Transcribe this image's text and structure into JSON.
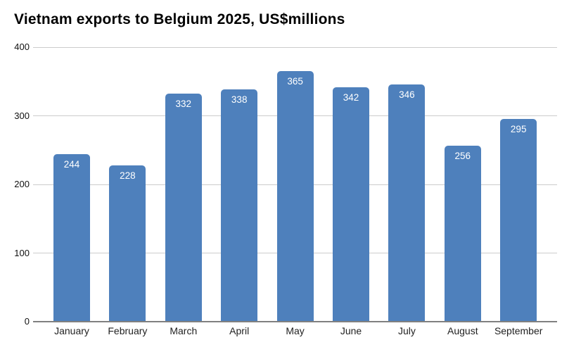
{
  "title": "Vietnam exports to Belgium 2025, US$millions",
  "chart_data": {
    "type": "bar",
    "title": "Vietnam exports to Belgium 2025, US$millions",
    "categories": [
      "January",
      "February",
      "March",
      "April",
      "May",
      "June",
      "July",
      "August",
      "September"
    ],
    "values": [
      244,
      228,
      332,
      338,
      365,
      342,
      346,
      256,
      295
    ],
    "xlabel": "",
    "ylabel": "",
    "ylim": [
      0,
      400
    ],
    "yticks": [
      0,
      100,
      200,
      300,
      400
    ],
    "grid": true,
    "legend": "none",
    "bar_labels_visible": true,
    "colors": {
      "bar_fill": "#4e80bc",
      "bar_label_text": "#ffffff",
      "gridline": "#cccccc",
      "axis_line": "#808080",
      "axis_text": "#1f1f1f",
      "title_text": "#000000",
      "background": "#ffffff"
    }
  }
}
